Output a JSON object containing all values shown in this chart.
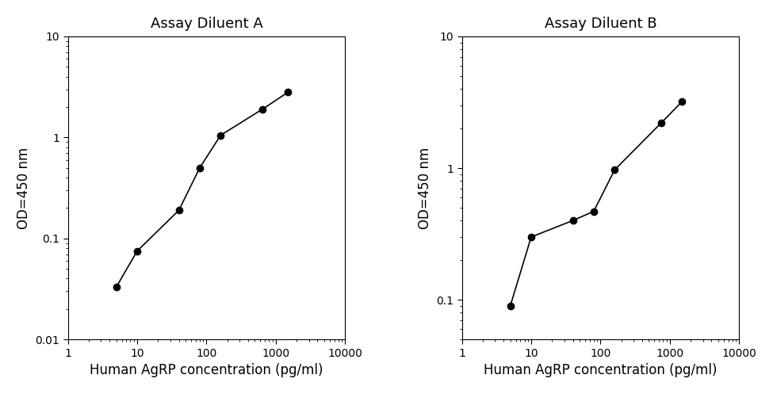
{
  "panel_A": {
    "title": "Assay Diluent A",
    "x": [
      5,
      10,
      40,
      80,
      160,
      640,
      1500
    ],
    "y": [
      0.033,
      0.075,
      0.19,
      0.5,
      1.05,
      1.9,
      2.8
    ],
    "xlabel": "Human AgRP concentration (pg/ml)",
    "ylabel": "OD=450 nm",
    "xlim": [
      1,
      10000
    ],
    "ylim": [
      0.01,
      10
    ],
    "yticks": [
      0.01,
      0.1,
      1,
      10
    ],
    "xticks": [
      1,
      10,
      100,
      1000,
      10000
    ]
  },
  "panel_B": {
    "title": "Assay Diluent B",
    "x": [
      5,
      10,
      40,
      80,
      160,
      750,
      1500
    ],
    "y": [
      0.09,
      0.3,
      0.4,
      0.47,
      0.97,
      2.2,
      3.2
    ],
    "xlabel": "Human AgRP concentration (pg/ml)",
    "ylabel": "OD=450 nm",
    "xlim": [
      1,
      10000
    ],
    "ylim": [
      0.05,
      10
    ],
    "yticks": [
      0.1,
      1,
      10
    ],
    "xticks": [
      1,
      10,
      100,
      1000,
      10000
    ]
  },
  "line_color": "#000000",
  "marker": "o",
  "marker_size": 6,
  "marker_facecolor": "#000000",
  "line_width": 1.2,
  "title_fontsize": 13,
  "label_fontsize": 12,
  "tick_fontsize": 10,
  "background_color": "#ffffff"
}
